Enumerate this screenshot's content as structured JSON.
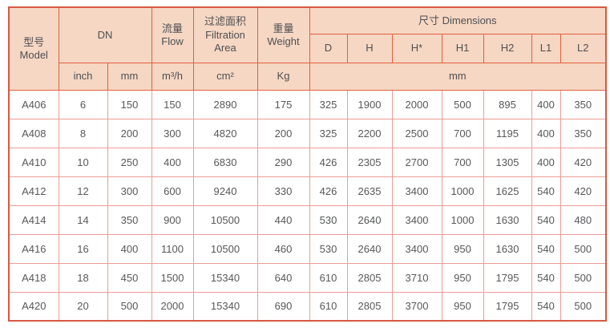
{
  "colors": {
    "header_bg": "#f6d7c4",
    "header_border": "#e0603e",
    "body_border": "#ec9d97",
    "outer_border": "#d95843",
    "text": "#57585a"
  },
  "table": {
    "header": {
      "model_zh": "型号",
      "model_en": "Model",
      "dn": "DN",
      "flow_zh": "流量",
      "flow_en": "Flow",
      "filtration_zh": "过滤面积",
      "filtration_en_line1": "Filtration",
      "filtration_en_line2": "Area",
      "weight_zh": "重量",
      "weight_en": "Weight",
      "dimensions": "尺寸 Dimensions",
      "dim_cols": [
        "D",
        "H",
        "H*",
        "H1",
        "H2",
        "L1",
        "L2"
      ],
      "units": {
        "inch": "inch",
        "mm": "mm",
        "flow": "m³/h",
        "filtration": "cm²",
        "weight": "Kg",
        "dimensions_mm": "mm"
      }
    },
    "rows": [
      {
        "model": "A406",
        "values": [
          "6",
          "150",
          "150",
          "2890",
          "175",
          "325",
          "1900",
          "2000",
          "500",
          "895",
          "400",
          "350"
        ]
      },
      {
        "model": "A408",
        "values": [
          "8",
          "200",
          "300",
          "4820",
          "200",
          "325",
          "2200",
          "2500",
          "700",
          "1195",
          "400",
          "350"
        ]
      },
      {
        "model": "A410",
        "values": [
          "10",
          "250",
          "400",
          "6830",
          "290",
          "426",
          "2305",
          "2700",
          "700",
          "1305",
          "400",
          "420"
        ]
      },
      {
        "model": "A412",
        "values": [
          "12",
          "300",
          "600",
          "9240",
          "330",
          "426",
          "2635",
          "3400",
          "1000",
          "1625",
          "540",
          "420"
        ]
      },
      {
        "model": "A414",
        "values": [
          "14",
          "350",
          "900",
          "10500",
          "440",
          "530",
          "2640",
          "3400",
          "1000",
          "1630",
          "540",
          "480"
        ]
      },
      {
        "model": "A416",
        "values": [
          "16",
          "400",
          "1100",
          "10500",
          "460",
          "530",
          "2640",
          "3400",
          "950",
          "1630",
          "540",
          "500"
        ]
      },
      {
        "model": "A418",
        "values": [
          "18",
          "450",
          "1500",
          "15340",
          "640",
          "610",
          "2805",
          "3710",
          "950",
          "1795",
          "540",
          "500"
        ]
      },
      {
        "model": "A420",
        "values": [
          "20",
          "500",
          "2000",
          "15340",
          "690",
          "610",
          "2805",
          "3700",
          "950",
          "1795",
          "540",
          "500"
        ]
      }
    ]
  }
}
